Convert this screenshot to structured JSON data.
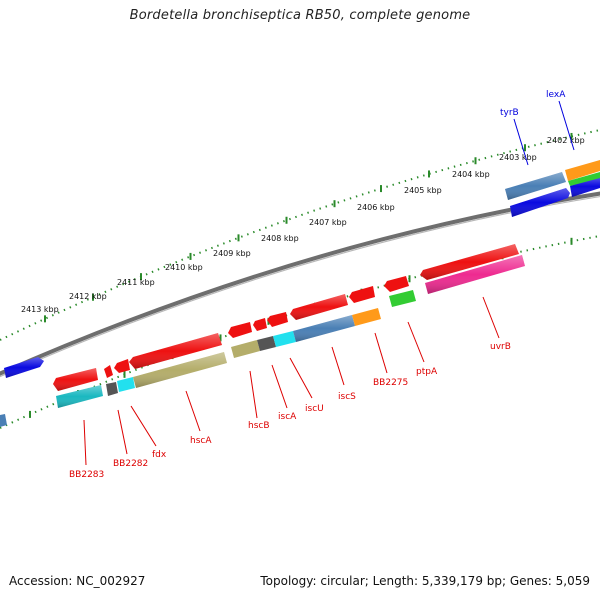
{
  "title": "Bordetella bronchiseptica RB50, complete genome",
  "footer": {
    "accession": "Accession: NC_002927",
    "summary": "Topology: circular; Length: 5,339,179 bp; Genes: 5,059"
  },
  "scale_labels": [
    "2402 kbp",
    "2403 kbp",
    "2404 kbp",
    "2405 kbp",
    "2406 kbp",
    "2407 kbp",
    "2408 kbp",
    "2409 kbp",
    "2410 kbp",
    "2411 kbp",
    "2412 kbp",
    "2413 kbp"
  ],
  "gene_labels": [
    {
      "text": "lexA",
      "color": "#0000dd"
    },
    {
      "text": "tyrB",
      "color": "#0000dd"
    },
    {
      "text": "uvrB",
      "color": "#dd0000"
    },
    {
      "text": "ptpA",
      "color": "#dd0000"
    },
    {
      "text": "BB2275",
      "color": "#dd0000"
    },
    {
      "text": "iscS",
      "color": "#dd0000"
    },
    {
      "text": "iscU",
      "color": "#dd0000"
    },
    {
      "text": "iscA",
      "color": "#dd0000"
    },
    {
      "text": "hscB",
      "color": "#dd0000"
    },
    {
      "text": "hscA",
      "color": "#dd0000"
    },
    {
      "text": "fdx",
      "color": "#dd0000"
    },
    {
      "text": "BB2282",
      "color": "#dd0000"
    },
    {
      "text": "BB2283",
      "color": "#dd0000"
    }
  ],
  "colors": {
    "backbone": "#7a7a7a",
    "ticks": "#2a8a2a",
    "red": "#ee1111",
    "blue": "#0a0ae0",
    "steel": "#4a7fb5",
    "olive": "#b4ad6a",
    "cyan": "#22e0ee",
    "teal": "#1ab8c0",
    "orange": "#ff9a1a",
    "green": "#33cc33",
    "pink": "#ee2a90",
    "gray": "#555555"
  }
}
